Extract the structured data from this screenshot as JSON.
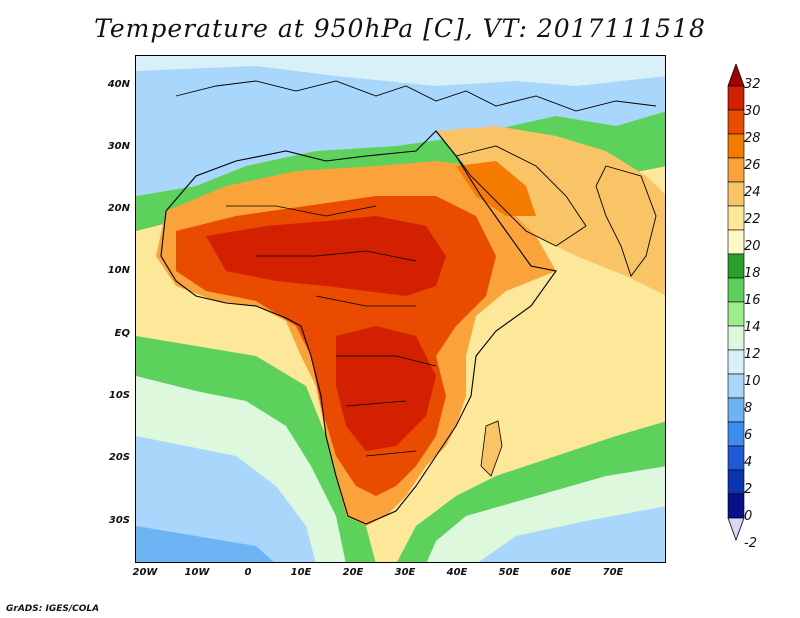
{
  "title": "Temperature at 950hPa [C], VT: 2017111518",
  "credit": "GrADS: IGES/COLA",
  "lat_labels": [
    "40N",
    "30N",
    "20N",
    "10N",
    "EQ",
    "10S",
    "20S",
    "30S"
  ],
  "lon_labels": [
    "20W",
    "10W",
    "0",
    "10E",
    "20E",
    "30E",
    "40E",
    "50E",
    "60E",
    "70E"
  ],
  "colorbar": {
    "labels": [
      "32",
      "30",
      "28",
      "26",
      "24",
      "22",
      "20",
      "18",
      "16",
      "14",
      "12",
      "10",
      "8",
      "6",
      "4",
      "2",
      "0",
      "-2"
    ],
    "colors": [
      "#a50000",
      "#d22000",
      "#e94b00",
      "#f57a00",
      "#f9a33a",
      "#f9c466",
      "#fde89a",
      "#fdf8c4",
      "#2ca02c",
      "#5cd15c",
      "#9cee8c",
      "#ddf8dd",
      "#d8f0f8",
      "#a9d6fb",
      "#6db4f5",
      "#3d8ef0",
      "#1f5bd6",
      "#0b34b0",
      "#08118a",
      "#d9d6f7"
    ]
  },
  "regions": {
    "ocean_north": "#a9d6fb",
    "ocean_south": "#6db4f5",
    "sahara_west": "#f9c466",
    "sahel": "#e94b00",
    "central": "#d22000",
    "arabia": "#f9a33a",
    "indian_ocean": "#fde89a",
    "atlantic_tropical": "#fde89a",
    "mediterranean": "#ddf8dd",
    "green_band": "#5cd15c"
  }
}
